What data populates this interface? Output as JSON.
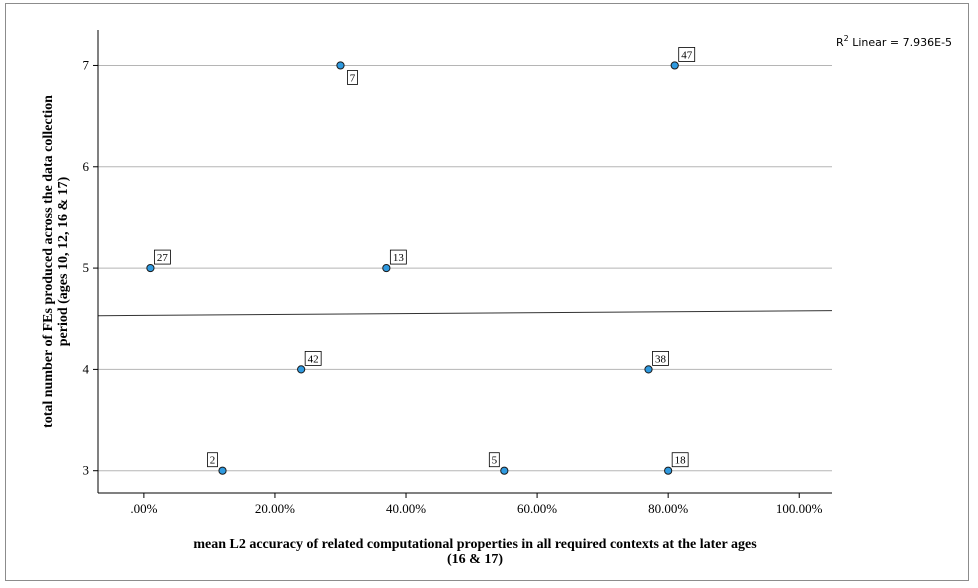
{
  "chart_data": {
    "type": "scatter",
    "title": "",
    "xlabel_lines": [
      "mean L2 accuracy of related computational properties in all required contexts at the later ages",
      "(16 & 17)"
    ],
    "ylabel_lines": [
      "total number of FEs produced across the data collection",
      "period (ages 10, 12, 16 & 17)"
    ],
    "x_ticks": [
      0,
      20,
      40,
      60,
      80,
      100
    ],
    "x_tick_labels": [
      ".00%",
      "20.00%",
      "40.00%",
      "60.00%",
      "80.00%",
      "100.00%"
    ],
    "y_ticks": [
      3,
      4,
      5,
      6,
      7
    ],
    "y_tick_labels": [
      "3",
      "4",
      "5",
      "6",
      "7"
    ],
    "xlim": [
      -7,
      105
    ],
    "ylim": [
      2.78,
      7.35
    ],
    "grid": "horizontal",
    "point_color": "#2f9ae0",
    "points": [
      {
        "x": 30,
        "y": 7,
        "label": "7",
        "label_pos": "below-right"
      },
      {
        "x": 81,
        "y": 7,
        "label": "47",
        "label_pos": "above-right"
      },
      {
        "x": 1,
        "y": 5,
        "label": "27",
        "label_pos": "above-right"
      },
      {
        "x": 37,
        "y": 5,
        "label": "13",
        "label_pos": "above-right"
      },
      {
        "x": 24,
        "y": 4,
        "label": "42",
        "label_pos": "above-right"
      },
      {
        "x": 77,
        "y": 4,
        "label": "38",
        "label_pos": "above-right"
      },
      {
        "x": 12,
        "y": 3,
        "label": "2",
        "label_pos": "above-left"
      },
      {
        "x": 55,
        "y": 3,
        "label": "5",
        "label_pos": "above-left"
      },
      {
        "x": 80,
        "y": 3,
        "label": "18",
        "label_pos": "above-right"
      }
    ],
    "fit_line": {
      "x": [
        -7,
        105
      ],
      "y": [
        4.53,
        4.58
      ]
    },
    "r2_label": {
      "prefix": "R",
      "sup": "2",
      "text": " Linear = 7.936E-5"
    }
  }
}
